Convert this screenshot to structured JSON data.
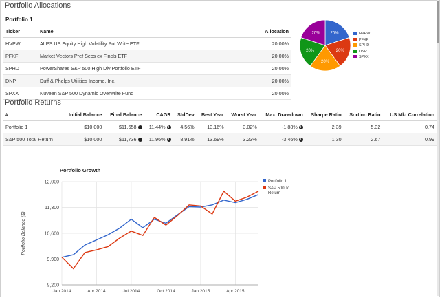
{
  "allocations": {
    "heading": "Portfolio Allocations",
    "portfolio_label": "Portfolio 1",
    "columns": [
      "Ticker",
      "Name",
      "Allocation"
    ],
    "rows": [
      {
        "ticker": "HVPW",
        "name": "ALPS US Equity High Volatility Put Write ETF",
        "allocation": "20.00%"
      },
      {
        "ticker": "PFXF",
        "name": "Market Vectors Pref Secs ex Fincls ETF",
        "allocation": "20.00%"
      },
      {
        "ticker": "SPHD",
        "name": "PowerShares S&P 500 High Div Portfolio ETF",
        "allocation": "20.00%"
      },
      {
        "ticker": "DNP",
        "name": "Duff & Phelps Utilities Income, Inc.",
        "allocation": "20.00%"
      },
      {
        "ticker": "SPXX",
        "name": "Nuveen S&P 500 Dynamic Overwrite Fund",
        "allocation": "20.00%"
      }
    ]
  },
  "pie": {
    "slices": [
      {
        "label": "HVPW",
        "value": 20,
        "text": "20%",
        "color": "#3366cc"
      },
      {
        "label": "PFXF",
        "value": 20,
        "text": "20%",
        "color": "#dc3912"
      },
      {
        "label": "SPHD",
        "value": 20,
        "text": "20%",
        "color": "#ff9900"
      },
      {
        "label": "DNP",
        "value": 20,
        "text": "20%",
        "color": "#109618"
      },
      {
        "label": "SPXX",
        "value": 20,
        "text": "20%",
        "color": "#990099"
      }
    ]
  },
  "returns": {
    "heading": "Portfolio Returns",
    "columns": [
      "#",
      "Initial Balance",
      "Final Balance",
      "CAGR",
      "StdDev",
      "Best Year",
      "Worst Year",
      "Max. Drawdown",
      "Sharpe Ratio",
      "Sortino Ratio",
      "US Mkt Correlation"
    ],
    "rows": [
      {
        "name": "Portfolio 1",
        "initial": "$10,000",
        "final": "$11,658",
        "cagr": "11.44%",
        "stddev": "4.56%",
        "best": "13.16%",
        "worst": "3.02%",
        "drawdown": "-1.88%",
        "sharpe": "2.39",
        "sortino": "5.32",
        "corr": "0.74"
      },
      {
        "name": "S&P 500 Total Return",
        "initial": "$10,000",
        "final": "$11,736",
        "cagr": "11.96%",
        "stddev": "8.91%",
        "best": "13.69%",
        "worst": "3.23%",
        "drawdown": "-3.46%",
        "sharpe": "1.30",
        "sortino": "2.67",
        "corr": "0.99"
      }
    ],
    "info_glyph": "i"
  },
  "chart_data": {
    "type": "line",
    "title": "Portfolio Growth",
    "ylabel": "Portfolio Balance ($)",
    "xlabel": "",
    "x": [
      "2014-01",
      "2014-02",
      "2014-03",
      "2014-04",
      "2014-05",
      "2014-06",
      "2014-07",
      "2014-08",
      "2014-09",
      "2014-10",
      "2014-11",
      "2014-12",
      "2015-01",
      "2015-02",
      "2015-03",
      "2015-04",
      "2015-05",
      "2015-06"
    ],
    "xticks": [
      "Jan 2014",
      "Apr 2014",
      "Jul 2014",
      "Oct 2014",
      "Jan 2015",
      "Apr 2015"
    ],
    "ylim": [
      9200,
      12000
    ],
    "yticks": [
      "12,000",
      "11,300",
      "10,600",
      "9,900",
      "9,200"
    ],
    "ytick_values": [
      12000,
      11300,
      10600,
      9900,
      9200
    ],
    "grid": true,
    "legend_position": "top-right",
    "series": [
      {
        "name": "Portfolio 1",
        "color": "#3366cc",
        "values": [
          9950,
          10020,
          10280,
          10420,
          10560,
          10740,
          10980,
          10750,
          10980,
          10870,
          11100,
          11320,
          11310,
          11370,
          11500,
          11430,
          11520,
          11650
        ]
      },
      {
        "name": "S&P 500 Total Return",
        "color": "#dc3912",
        "values": [
          9950,
          9640,
          10080,
          10150,
          10240,
          10470,
          10660,
          10540,
          11030,
          10820,
          11080,
          11370,
          11340,
          11120,
          11740,
          11470,
          11580,
          11740
        ]
      }
    ]
  }
}
